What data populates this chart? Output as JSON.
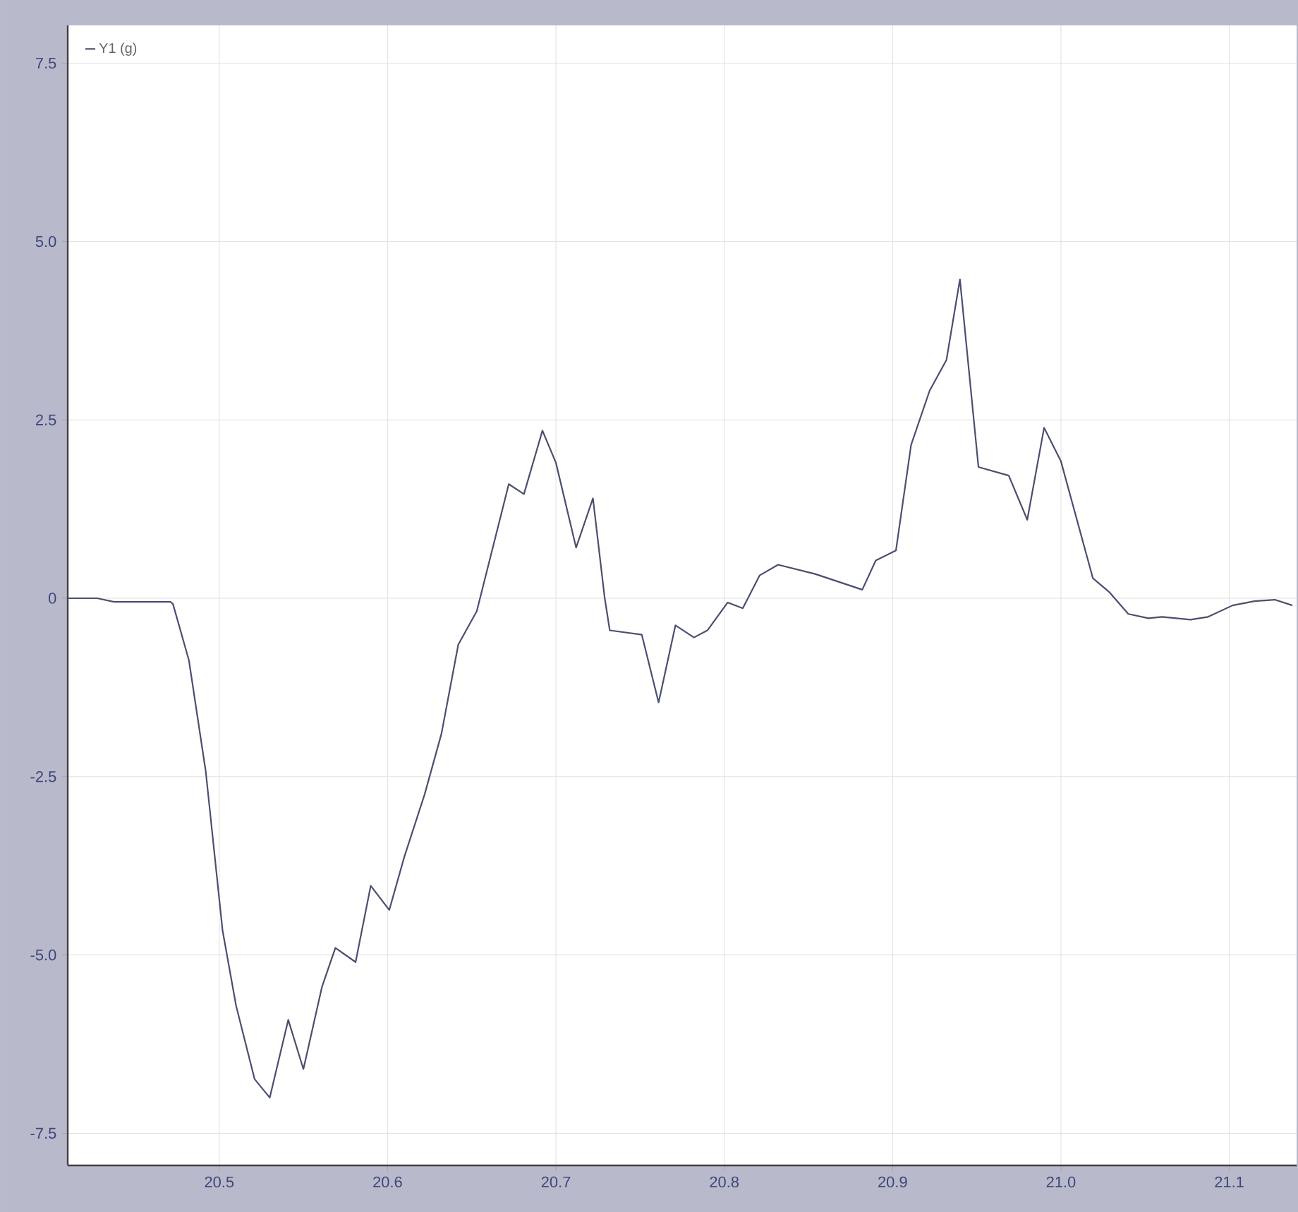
{
  "chart_data": {
    "type": "line",
    "grid": true,
    "legend": "top left",
    "marker": "none",
    "line_style": "solid",
    "xlim": [
      20.41,
      21.14
    ],
    "ylim": [
      -7.95,
      8.03
    ],
    "xticks": [
      20.5,
      20.6,
      20.7,
      20.8,
      20.9,
      {
        "value": 21.0,
        "label": "21.0"
      },
      21.1
    ],
    "yticks": [
      {
        "value": -7.5,
        "label": "-7.5"
      },
      {
        "value": -5.0,
        "label": "-5.0"
      },
      {
        "value": -2.5,
        "label": "-2.5"
      },
      0,
      2.5,
      {
        "value": 5.0,
        "label": "5.0"
      },
      7.5
    ],
    "series": [
      {
        "name": "Y1 (g)",
        "color": "#4a4f70",
        "x": [
          20.41,
          20.4275,
          20.4375,
          20.471,
          20.4725,
          20.482,
          20.492,
          20.502,
          20.51,
          20.521,
          20.53,
          20.541,
          20.55,
          20.561,
          20.569,
          20.581,
          20.59,
          20.601,
          20.61,
          20.622,
          20.632,
          20.642,
          20.653,
          20.672,
          20.681,
          20.692,
          20.7,
          20.712,
          20.722,
          20.729,
          20.732,
          20.751,
          20.761,
          20.771,
          20.782,
          20.79,
          20.802,
          20.811,
          20.821,
          20.832,
          20.854,
          20.882,
          20.89,
          20.902,
          20.911,
          20.922,
          20.932,
          20.94,
          20.951,
          20.969,
          20.98,
          20.99,
          21.0,
          21.019,
          21.029,
          21.04,
          21.052,
          21.06,
          21.077,
          21.0875,
          21.102,
          21.115,
          21.127,
          21.1375
        ],
        "values": [
          0,
          0,
          -0.05,
          -0.05,
          -0.08,
          -0.87,
          -2.43,
          -4.66,
          -5.71,
          -6.74,
          -7.0,
          -5.91,
          -6.6,
          -5.45,
          -4.9,
          -5.1,
          -4.03,
          -4.37,
          -3.62,
          -2.75,
          -1.9,
          -0.65,
          -0.18,
          1.6,
          1.46,
          2.35,
          1.9,
          0.71,
          1.4,
          0,
          -0.45,
          -0.51,
          -1.46,
          -0.38,
          -0.55,
          -0.45,
          -0.06,
          -0.14,
          0.32,
          0.47,
          0.34,
          0.12,
          0.53,
          0.67,
          2.15,
          2.91,
          3.34,
          4.47,
          1.84,
          1.72,
          1.1,
          2.39,
          1.92,
          0.28,
          0.08,
          -0.22,
          -0.28,
          -0.26,
          -0.3,
          -0.26,
          -0.1,
          -0.04,
          -0.02,
          -0.1
        ]
      }
    ]
  }
}
